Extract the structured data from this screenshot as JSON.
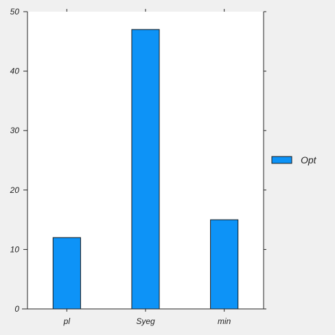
{
  "colors": {
    "background": "#f0f0f0",
    "plot_area": "#ffffff",
    "bar_fill": "#0d93f7",
    "bar_stroke": "#1a1a1a",
    "axis": "#222222"
  },
  "chart_data": {
    "type": "bar",
    "categories": [
      "pl",
      "Syeg",
      "min"
    ],
    "series": [
      {
        "name": "Opt",
        "values": [
          12,
          47,
          15
        ]
      }
    ],
    "title": "",
    "xlabel": "",
    "ylabel": "",
    "ylim": [
      0,
      50
    ],
    "yticks": [
      0,
      10,
      20,
      30,
      40,
      50
    ],
    "ytick_labels": [
      "0",
      "10",
      "20",
      "30",
      "40",
      "50"
    ],
    "grid": false,
    "legend": {
      "placement": "right",
      "entries": [
        "Opt"
      ]
    }
  }
}
